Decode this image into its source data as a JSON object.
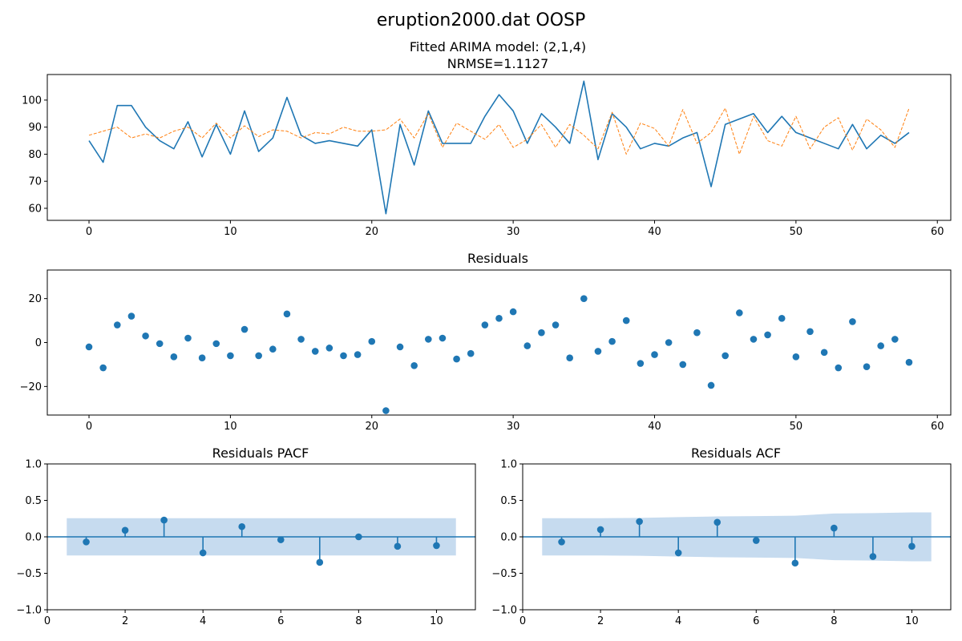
{
  "figure": {
    "suptitle": "eruption2000.dat OOSP"
  },
  "chart_data": [
    {
      "type": "line",
      "title_lines": [
        "Fitted ARIMA model: (2,1,4)",
        "NRMSE=1.1127"
      ],
      "xlim": [
        -2.95,
        60.95
      ],
      "ylim": [
        55.55,
        109.45
      ],
      "xticks": [
        0,
        10,
        20,
        30,
        40,
        50,
        60
      ],
      "yticks": [
        60,
        70,
        80,
        90,
        100
      ],
      "colors": {
        "actual": "#1f77b4",
        "fitted": "#ff7f0e"
      },
      "series": [
        {
          "key": "actual",
          "style": "solid",
          "values": [
            85,
            77,
            98,
            98,
            90,
            85,
            82,
            92,
            79,
            91,
            80,
            96,
            81,
            86,
            101,
            87,
            84,
            85,
            84,
            83,
            89,
            58,
            91,
            76,
            96,
            84,
            84,
            84,
            94,
            102,
            96,
            84,
            95,
            90,
            84,
            107,
            78,
            95,
            90,
            82,
            84,
            83,
            86,
            88,
            68,
            91,
            93,
            95,
            88,
            94,
            88,
            86,
            84,
            82,
            91,
            82,
            87,
            84,
            88
          ]
        },
        {
          "key": "fitted",
          "style": "dashed",
          "values": [
            87,
            88.5,
            90,
            86,
            87.5,
            86,
            88.5,
            90,
            86,
            91.5,
            86,
            90.5,
            86.5,
            89,
            88.5,
            86,
            88,
            87.5,
            90,
            88.5,
            88.5,
            89,
            93,
            86,
            95,
            82.5,
            91.5,
            88.5,
            85.5,
            91,
            82.5,
            85.5,
            91,
            82.5,
            91,
            87,
            82,
            95.5,
            80,
            91.5,
            89.5,
            83,
            96.5,
            84,
            88,
            97,
            80,
            94,
            85,
            83,
            94,
            82,
            90,
            93.5,
            81.5,
            93,
            89,
            82.5,
            97
          ]
        }
      ]
    },
    {
      "type": "scatter",
      "title": "Residuals",
      "xlim": [
        -2.95,
        60.95
      ],
      "ylim": [
        -33,
        33
      ],
      "xticks": [
        0,
        10,
        20,
        30,
        40,
        50,
        60
      ],
      "yticks": [
        -20,
        0,
        20
      ],
      "color": "#1f77b4",
      "values": [
        -2,
        -11.5,
        8,
        12,
        3,
        -0.5,
        -6.5,
        2,
        -7,
        -0.5,
        -6,
        6,
        -6,
        -3,
        13,
        1.5,
        -4,
        -2.5,
        -6,
        -5.5,
        0.5,
        -31,
        -2,
        -10.5,
        1.5,
        2,
        -7.5,
        -5,
        8,
        11,
        14,
        -1.5,
        4.5,
        8,
        -7,
        20,
        -4,
        0.5,
        10,
        -9.5,
        -5.5,
        0,
        -10,
        4.5,
        -19.5,
        -6,
        13.5,
        1.5,
        3.5,
        11,
        -6.5,
        5,
        -4.5,
        -11.5,
        9.5,
        -11,
        -1.5,
        1.5,
        -9
      ]
    },
    {
      "type": "stem",
      "title": "Residuals PACF",
      "xlim": [
        0,
        11
      ],
      "ylim": [
        -1,
        1
      ],
      "xticks": [
        0,
        2,
        4,
        6,
        8,
        10
      ],
      "yticks": [
        -1.0,
        -0.5,
        0.0,
        0.5,
        1.0
      ],
      "ytick_labels": [
        "−1.0",
        "−0.5",
        "0.0",
        "0.5",
        "1.0"
      ],
      "color": "#1f77b4",
      "band_color": "#c6dbef",
      "lags": [
        1,
        2,
        3,
        4,
        5,
        6,
        7,
        8,
        9,
        10
      ],
      "values": [
        -0.07,
        0.09,
        0.23,
        -0.22,
        0.14,
        -0.04,
        -0.35,
        0.0,
        -0.13,
        -0.12
      ],
      "conf_lags": [
        0.5,
        10.5
      ],
      "conf_upper": [
        0.255,
        0.255
      ],
      "conf_lower": [
        -0.255,
        -0.255
      ]
    },
    {
      "type": "stem",
      "title": "Residuals ACF",
      "xlim": [
        0,
        11
      ],
      "ylim": [
        -1,
        1
      ],
      "xticks": [
        0,
        2,
        4,
        6,
        8,
        10
      ],
      "yticks": [
        -1.0,
        -0.5,
        0.0,
        0.5,
        1.0
      ],
      "ytick_labels": [
        "−1.0",
        "−0.5",
        "0.0",
        "0.5",
        "1.0"
      ],
      "color": "#1f77b4",
      "band_color": "#c6dbef",
      "lags": [
        1,
        2,
        3,
        4,
        5,
        6,
        7,
        8,
        9,
        10
      ],
      "values": [
        -0.07,
        0.1,
        0.21,
        -0.22,
        0.2,
        -0.05,
        -0.36,
        0.12,
        -0.27,
        -0.13
      ],
      "conf_lags": [
        0.5,
        1,
        2,
        3,
        4,
        5,
        6,
        7,
        8,
        9,
        10,
        10.5
      ],
      "conf_upper": [
        0.255,
        0.255,
        0.256,
        0.26,
        0.27,
        0.28,
        0.285,
        0.29,
        0.32,
        0.325,
        0.335,
        0.335
      ],
      "conf_lower": [
        -0.255,
        -0.255,
        -0.256,
        -0.26,
        -0.27,
        -0.28,
        -0.285,
        -0.29,
        -0.32,
        -0.325,
        -0.335,
        -0.335
      ]
    }
  ]
}
